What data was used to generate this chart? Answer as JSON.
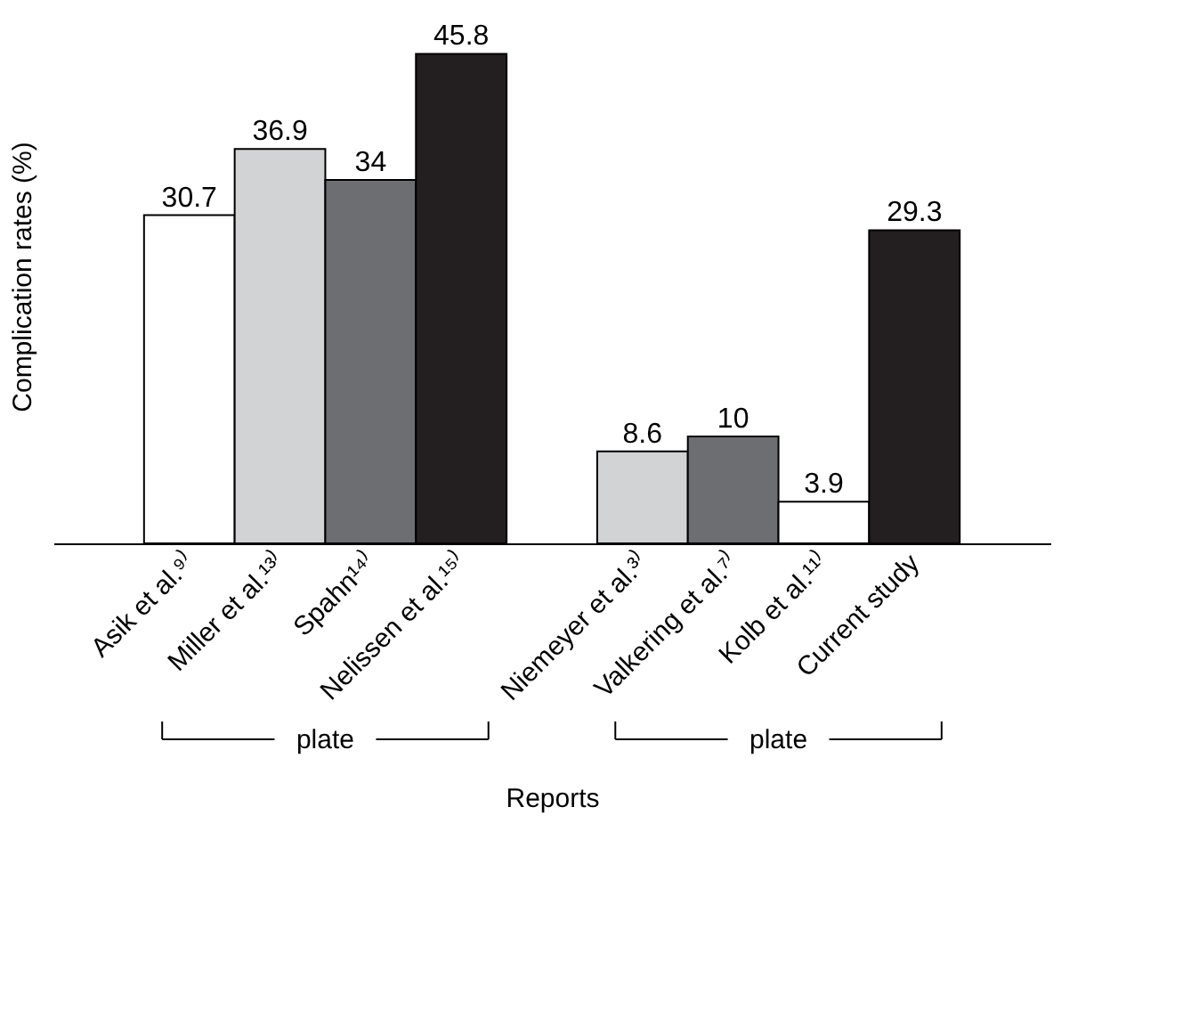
{
  "chart_data": {
    "type": "bar",
    "xlabel": "Reports",
    "ylabel": "Complication rates (%)",
    "categories": [
      "Asik et al.⁹⁾",
      "Miller et al.¹³⁾",
      "Spahn¹⁴⁾",
      "Nelissen et al.¹⁵⁾",
      null,
      "Niemeyer et al.³⁾",
      "Valkering et al.⁷⁾",
      "Kolb et al.¹¹⁾",
      "Current study"
    ],
    "values": [
      30.7,
      36.9,
      34,
      45.8,
      null,
      8.6,
      10,
      3.9,
      29.3
    ],
    "colors": [
      "#ffffff",
      "#d1d3d4",
      "#6d6e71",
      "#231f20",
      null,
      "#d1d3d4",
      "#6d6e71",
      "#ffffff",
      "#231f20"
    ],
    "data_labels": true,
    "annotations": [
      "plate",
      "plate"
    ],
    "grid": false
  }
}
